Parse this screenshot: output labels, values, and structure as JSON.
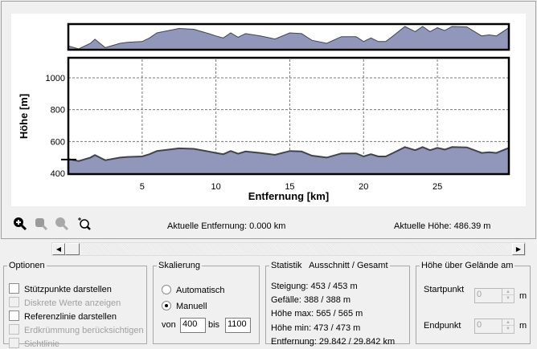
{
  "chart_data": {
    "type": "area",
    "xlabel": "Entfernung [km]",
    "ylabel": "Höhe [m]",
    "xlim": [
      0,
      29.842
    ],
    "ylim": [
      400,
      1100
    ],
    "xticks": [
      5,
      10,
      15,
      20,
      25
    ],
    "yticks": [
      400,
      600,
      800,
      1000
    ],
    "grid": true,
    "reference_height": 486.39,
    "x": [
      0,
      0.7,
      1.5,
      1.8,
      2.5,
      3.5,
      4,
      5,
      5.5,
      6,
      7.5,
      8.5,
      9.5,
      10,
      10.5,
      11,
      11.5,
      12,
      13,
      14,
      15,
      15.8,
      16.5,
      17.5,
      18.5,
      19.5,
      20,
      20.5,
      21,
      21.5,
      22,
      22.8,
      23.5,
      24,
      24.5,
      25,
      25.5,
      26,
      27,
      28,
      28.5,
      29,
      29.842
    ],
    "y": [
      489,
      477,
      499,
      515,
      482,
      499,
      503,
      506,
      520,
      540,
      557,
      554,
      537,
      528,
      520,
      540,
      523,
      537,
      528,
      516,
      540,
      537,
      511,
      499,
      525,
      525,
      506,
      520,
      506,
      506,
      528,
      565,
      545,
      565,
      545,
      560,
      549,
      565,
      563,
      528,
      532,
      528,
      560
    ]
  },
  "toolbar": {
    "tools": [
      "zoom-in",
      "zoom-fit",
      "zoom-out",
      "zoom-selection"
    ]
  },
  "status": {
    "distance": "Aktuelle Entfernung: 0.000 km",
    "height": "Aktuelle Höhe: 486.39 m"
  },
  "options": {
    "title": "Optionen",
    "items": [
      {
        "label": "Stützpunkte darstellen",
        "enabled": true
      },
      {
        "label": "Diskrete Werte anzeigen",
        "enabled": false
      },
      {
        "label": "Referenzlinie darstellen",
        "enabled": true
      },
      {
        "label": "Erdkrümmung berücksichtigen",
        "enabled": false
      },
      {
        "label": "Sichtlinie",
        "enabled": false
      }
    ]
  },
  "scaling": {
    "title": "Skalierung",
    "auto": "Automatisch",
    "manual": "Manuell",
    "from_label": "von",
    "from": "400",
    "to_label": "bis",
    "to": "1100"
  },
  "stats": {
    "title": "Statistik   Ausschnitt / Gesamt",
    "lines": [
      "Steigung: 453 / 453 m",
      "Gefälle: 388 / 388 m",
      "Höhe max: 565 / 565 m",
      "Höhe min: 473 / 473 m",
      "Entfernung: 29.842 / 29.842 km"
    ]
  },
  "terrain": {
    "title": "Höhe über Gelände am",
    "start_label": "Startpunkt",
    "start": "0",
    "end_label": "Endpunkt",
    "end": "0",
    "unit": "m"
  }
}
